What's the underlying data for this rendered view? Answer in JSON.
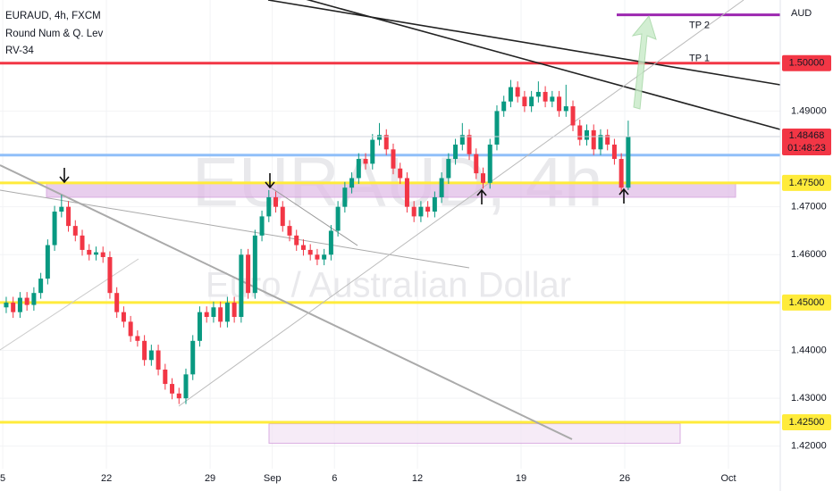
{
  "chart_data": {
    "type": "candlestick",
    "title": "EURAUD, 4h, FXCM",
    "indicators": [
      "Round Num & Q. Lev",
      "RV-34"
    ],
    "watermark": {
      "symbol": "EURAUD, 4h",
      "description": "Euro / Australian Dollar"
    },
    "currency": "AUD",
    "up_color": "#089981",
    "down_color": "#f23645",
    "xlim": [
      -0.9,
      112
    ],
    "xticks": [
      {
        "value": -0.5,
        "label": "5"
      },
      {
        "value": 14.5,
        "label": "22"
      },
      {
        "value": 29.5,
        "label": "29"
      },
      {
        "value": 38.5,
        "label": "Sep"
      },
      {
        "value": 47.5,
        "label": "6"
      },
      {
        "value": 59.5,
        "label": "12"
      },
      {
        "value": 74.5,
        "label": "19"
      },
      {
        "value": 89.5,
        "label": "26"
      },
      {
        "value": 104.5,
        "label": "Oct"
      }
    ],
    "ylim": [
      1.4153,
      1.5132
    ],
    "yticks": [
      {
        "value": 1.42,
        "label": "1.42000"
      },
      {
        "value": 1.43,
        "label": "1.43000"
      },
      {
        "value": 1.44,
        "label": "1.44000"
      },
      {
        "value": 1.46,
        "label": "1.46000"
      },
      {
        "value": 1.47,
        "label": "1.47000"
      },
      {
        "value": 1.49,
        "label": "1.49000"
      }
    ],
    "open": [
      1.449,
      1.45,
      1.448,
      1.451,
      1.4495,
      1.452,
      1.455,
      1.462,
      1.469,
      1.47,
      1.466,
      1.464,
      1.461,
      1.46,
      1.4605,
      1.4595,
      1.452,
      1.448,
      1.446,
      1.443,
      1.442,
      1.438,
      1.44,
      1.436,
      1.433,
      1.431,
      1.43,
      1.435,
      1.442,
      1.448,
      1.447,
      1.449,
      1.446,
      1.45,
      1.447,
      1.46,
      1.452,
      1.464,
      1.468,
      1.472,
      1.47,
      1.466,
      1.464,
      1.462,
      1.461,
      1.46,
      1.459,
      1.46,
      1.465,
      1.47,
      1.474,
      1.476,
      1.48,
      1.479,
      1.484,
      1.485,
      1.482,
      1.478,
      1.476,
      1.47,
      1.468,
      1.47,
      1.469,
      1.472,
      1.476,
      1.48,
      1.483,
      1.485,
      1.481,
      1.477,
      1.475,
      1.483,
      1.49,
      1.492,
      1.495,
      1.493,
      1.491,
      1.493,
      1.494,
      1.492,
      1.493,
      1.49,
      1.491,
      1.487,
      1.484,
      1.486,
      1.482,
      1.485,
      1.483,
      1.48,
      1.474
    ],
    "high": [
      1.4512,
      1.4512,
      1.4522,
      1.4522,
      1.4532,
      1.4562,
      1.4632,
      1.4702,
      1.4725,
      1.4712,
      1.4672,
      1.4652,
      1.4622,
      1.4617,
      1.4617,
      1.4607,
      1.4532,
      1.4492,
      1.4472,
      1.4442,
      1.4432,
      1.4412,
      1.4412,
      1.4372,
      1.4342,
      1.4322,
      1.4362,
      1.4432,
      1.4492,
      1.4492,
      1.4502,
      1.4502,
      1.4512,
      1.4512,
      1.4612,
      1.4612,
      1.4652,
      1.4692,
      1.4735,
      1.4732,
      1.4712,
      1.4672,
      1.4652,
      1.4632,
      1.4622,
      1.4612,
      1.4612,
      1.4662,
      1.4712,
      1.4752,
      1.4772,
      1.4812,
      1.4812,
      1.4852,
      1.4875,
      1.4862,
      1.4832,
      1.4792,
      1.4772,
      1.4712,
      1.4712,
      1.4712,
      1.4732,
      1.4772,
      1.4812,
      1.4842,
      1.4875,
      1.4862,
      1.4822,
      1.4782,
      1.4842,
      1.4912,
      1.4932,
      1.4965,
      1.4962,
      1.4942,
      1.4942,
      1.4962,
      1.4952,
      1.4942,
      1.4942,
      1.4955,
      1.4922,
      1.4882,
      1.4872,
      1.4872,
      1.4862,
      1.4862,
      1.4842,
      1.4812,
      1.488
    ],
    "low": [
      1.4478,
      1.4468,
      1.4468,
      1.4483,
      1.4483,
      1.4508,
      1.4538,
      1.4608,
      1.4678,
      1.4648,
      1.4628,
      1.4598,
      1.4588,
      1.4588,
      1.4583,
      1.4508,
      1.4468,
      1.4448,
      1.4418,
      1.4408,
      1.4368,
      1.4368,
      1.4348,
      1.4318,
      1.4298,
      1.4288,
      1.4288,
      1.4338,
      1.4408,
      1.4458,
      1.4458,
      1.4448,
      1.4448,
      1.4458,
      1.4458,
      1.4508,
      1.4508,
      1.4628,
      1.4668,
      1.4688,
      1.4648,
      1.4628,
      1.4608,
      1.4598,
      1.4588,
      1.4578,
      1.4578,
      1.4588,
      1.4638,
      1.4688,
      1.4728,
      1.4748,
      1.4778,
      1.4778,
      1.4828,
      1.4808,
      1.4768,
      1.4748,
      1.4688,
      1.4668,
      1.4668,
      1.4678,
      1.4678,
      1.4708,
      1.4748,
      1.4788,
      1.4818,
      1.4798,
      1.4758,
      1.4738,
      1.4738,
      1.4818,
      1.4888,
      1.4908,
      1.4918,
      1.4898,
      1.4898,
      1.4918,
      1.4908,
      1.4908,
      1.4888,
      1.4888,
      1.4858,
      1.4828,
      1.4828,
      1.4808,
      1.4808,
      1.4818,
      1.4788,
      1.4731,
      1.4735
    ],
    "close": [
      1.45,
      1.448,
      1.451,
      1.4495,
      1.452,
      1.455,
      1.462,
      1.469,
      1.47,
      1.466,
      1.464,
      1.461,
      1.46,
      1.4605,
      1.4595,
      1.452,
      1.448,
      1.446,
      1.443,
      1.442,
      1.438,
      1.44,
      1.436,
      1.433,
      1.431,
      1.43,
      1.435,
      1.442,
      1.448,
      1.447,
      1.449,
      1.446,
      1.45,
      1.447,
      1.46,
      1.452,
      1.464,
      1.468,
      1.472,
      1.47,
      1.466,
      1.464,
      1.462,
      1.461,
      1.46,
      1.459,
      1.46,
      1.465,
      1.47,
      1.474,
      1.476,
      1.48,
      1.479,
      1.484,
      1.485,
      1.482,
      1.478,
      1.476,
      1.47,
      1.468,
      1.47,
      1.469,
      1.472,
      1.476,
      1.48,
      1.483,
      1.485,
      1.481,
      1.477,
      1.475,
      1.483,
      1.49,
      1.492,
      1.495,
      1.493,
      1.491,
      1.493,
      1.494,
      1.492,
      1.493,
      1.49,
      1.491,
      1.487,
      1.484,
      1.486,
      1.482,
      1.485,
      1.483,
      1.48,
      1.474,
      1.48468
    ],
    "last_price": {
      "value": 1.48468,
      "label": "1.48468",
      "countdown": "01:48:23"
    },
    "levels": [
      {
        "value": 1.5,
        "label": "1.50000",
        "color": "#f23645"
      },
      {
        "value": 1.4808,
        "color": "#90bff9"
      },
      {
        "value": 1.475,
        "label": "1.47500",
        "color": "#ffeb3b"
      },
      {
        "value": 1.45,
        "label": "1.45000",
        "color": "#ffeb3b"
      },
      {
        "value": 1.425,
        "label": "1.42500",
        "color": "#ffeb3b"
      }
    ],
    "targets": [
      {
        "label": "TP 2",
        "value": 1.5101,
        "color": "#9c27b0"
      },
      {
        "label": "TP 1",
        "value": 1.5
      }
    ],
    "zones": [
      {
        "from": 1.472,
        "to": 1.475,
        "color": "#e1bee7"
      },
      {
        "from": 1.4206,
        "to": 1.4247,
        "color": "#f3e5f5"
      }
    ]
  }
}
